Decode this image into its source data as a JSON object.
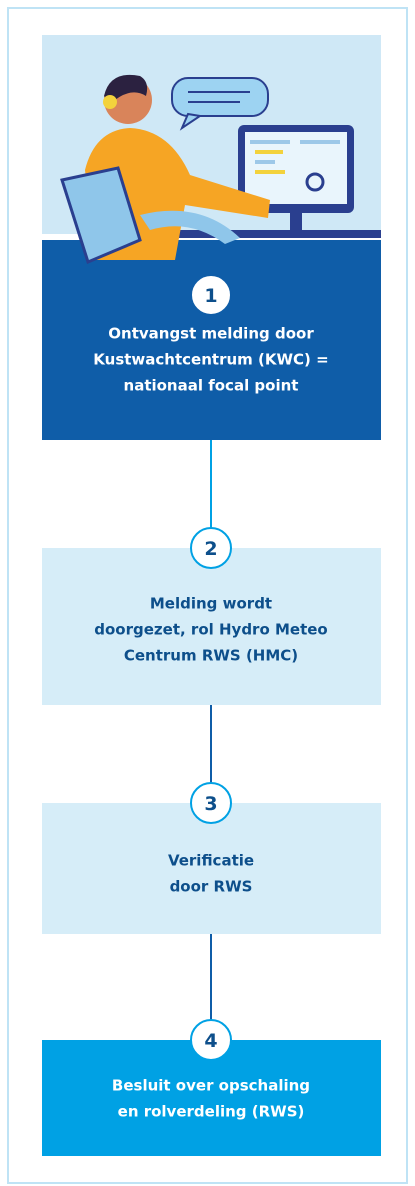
{
  "steps": [
    {
      "number": "1",
      "lines": [
        "Ontvangst melding door",
        "Kustwachtcentrum (KWC) =",
        "nationaal focal point"
      ]
    },
    {
      "number": "2",
      "lines": [
        "Melding wordt",
        "doorgezet, rol Hydro Meteo",
        "Centrum RWS (HMC)"
      ]
    },
    {
      "number": "3",
      "lines": [
        "Verificatie",
        "door RWS"
      ]
    },
    {
      "number": "4",
      "lines": [
        "Besluit over opschaling",
        "en rolverdeling (RWS)"
      ]
    }
  ]
}
